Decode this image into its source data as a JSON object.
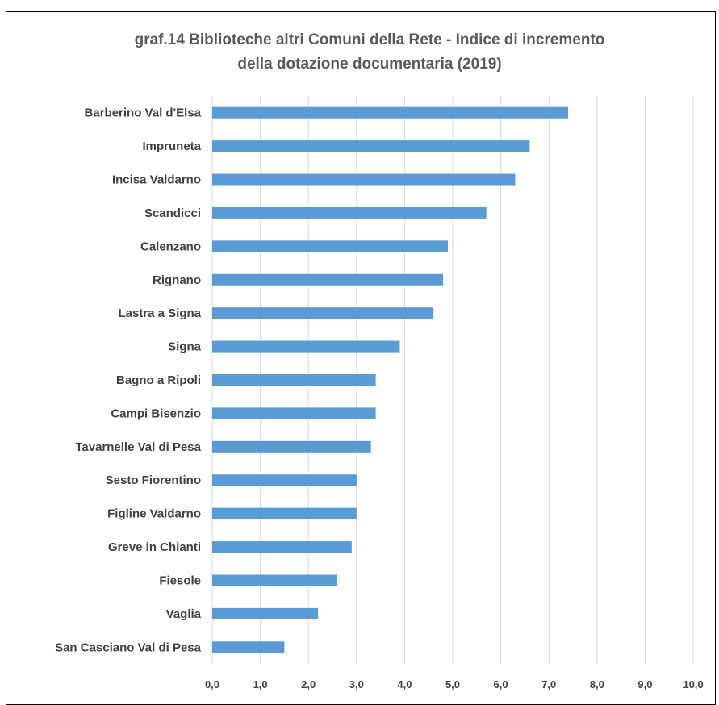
{
  "chart_data": {
    "type": "bar",
    "orientation": "horizontal",
    "title_lines": [
      "graf.14  Biblioteche altri Comuni della Rete - Indice di incremento",
      "della dotazione documentaria (2019)"
    ],
    "categories": [
      "Barberino Val d'Elsa",
      "Impruneta",
      "Incisa Valdarno",
      "Scandicci",
      "Calenzano",
      "Rignano",
      "Lastra a Signa",
      "Signa",
      "Bagno a Ripoli",
      "Campi Bisenzio",
      "Tavarnelle Val di Pesa",
      "Sesto Fiorentino",
      "Figline Valdarno",
      "Greve in Chianti",
      "Fiesole",
      "Vaglia",
      "San Casciano Val di Pesa"
    ],
    "values": [
      7.4,
      6.6,
      6.3,
      5.7,
      4.9,
      4.8,
      4.6,
      3.9,
      3.4,
      3.4,
      3.3,
      3.0,
      3.0,
      2.9,
      2.6,
      2.2,
      1.5
    ],
    "xlim": [
      0,
      10
    ],
    "xticks": [
      "0,0",
      "1,0",
      "2,0",
      "3,0",
      "4,0",
      "5,0",
      "6,0",
      "7,0",
      "8,0",
      "9,0",
      "10,0"
    ],
    "grid": true,
    "legend": "none",
    "colors": {
      "bar": "#5B9BD5",
      "grid": "#D9D9D9",
      "title": "#595959",
      "labels": "#404040"
    }
  }
}
